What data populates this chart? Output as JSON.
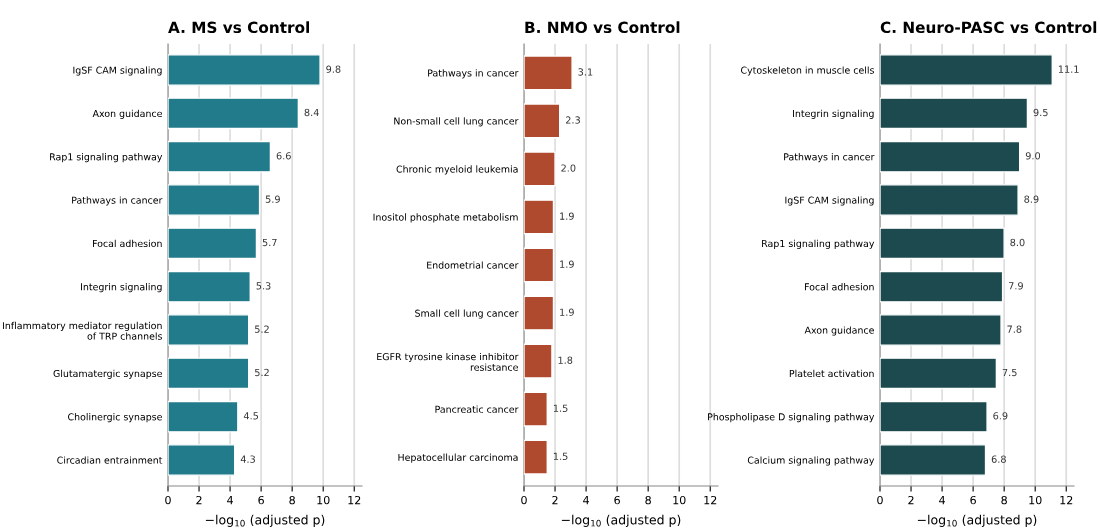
{
  "chart_data": [
    {
      "type": "bar",
      "orientation": "horizontal",
      "title": "A. MS vs Control",
      "xlabel": "−log$_{10}$ (adjusted p)",
      "categories": [
        "IgSF CAM signaling",
        "Axon guidance",
        "Rap1 signaling pathway",
        "Pathways in cancer",
        "Focal adhesion",
        "Integrin signaling",
        "Inflammatory mediator regulation\nof TRP channels",
        "Glutamatergic synapse",
        "Cholinergic synapse",
        "Circadian entrainment"
      ],
      "values": [
        9.8,
        8.4,
        6.6,
        5.9,
        5.7,
        5.3,
        5.2,
        5.2,
        4.5,
        4.3
      ],
      "value_labels": [
        "9.8",
        "8.4",
        "6.6",
        "5.9",
        "5.7",
        "5.3",
        "5.2",
        "5.2",
        "4.5",
        "4.3"
      ],
      "color": "#227b8a",
      "xlim": [
        0,
        12.5
      ],
      "xticks": [
        0,
        2,
        4,
        6,
        8,
        10,
        12
      ],
      "grid": "x"
    },
    {
      "type": "bar",
      "orientation": "horizontal",
      "title": "B. NMO vs Control",
      "xlabel": "−log$_{10}$ (adjusted p)",
      "categories": [
        "Pathways in cancer",
        "Non-small cell lung cancer",
        "Chronic myeloid leukemia",
        "Inositol phosphate metabolism",
        "Endometrial cancer",
        "Small cell lung cancer",
        "EGFR tyrosine kinase inhibitor\nresistance",
        "Pancreatic cancer",
        "Hepatocellular carcinoma"
      ],
      "values": [
        3.1,
        2.3,
        2.0,
        1.9,
        1.9,
        1.9,
        1.8,
        1.5,
        1.5
      ],
      "value_labels": [
        "3.1",
        "2.3",
        "2.0",
        "1.9",
        "1.9",
        "1.9",
        "1.8",
        "1.5",
        "1.5"
      ],
      "color": "#b04a2f",
      "xlim": [
        0,
        12.5
      ],
      "xticks": [
        0,
        2,
        4,
        6,
        8,
        10,
        12
      ],
      "grid": "x"
    },
    {
      "type": "bar",
      "orientation": "horizontal",
      "title": "C. Neuro-PASC vs Control",
      "xlabel": "−log$_{10}$ (adjusted p)",
      "categories": [
        "Cytoskeleton in muscle cells",
        "Integrin signaling",
        "Pathways in cancer",
        "IgSF CAM signaling",
        "Rap1 signaling pathway",
        "Focal adhesion",
        "Axon guidance",
        "Platelet activation",
        "Phospholipase D signaling pathway",
        "Calcium signaling pathway"
      ],
      "values": [
        11.1,
        9.5,
        9.0,
        8.9,
        8.0,
        7.9,
        7.8,
        7.5,
        6.9,
        6.8
      ],
      "value_labels": [
        "11.1",
        "9.5",
        "9.0",
        "8.9",
        "8.0",
        "7.9",
        "7.8",
        "7.5",
        "6.9",
        "6.8"
      ],
      "color": "#1d4a4e",
      "xlim": [
        0,
        12.5
      ],
      "xticks": [
        0,
        2,
        4,
        6,
        8,
        10,
        12
      ],
      "grid": "x"
    }
  ]
}
